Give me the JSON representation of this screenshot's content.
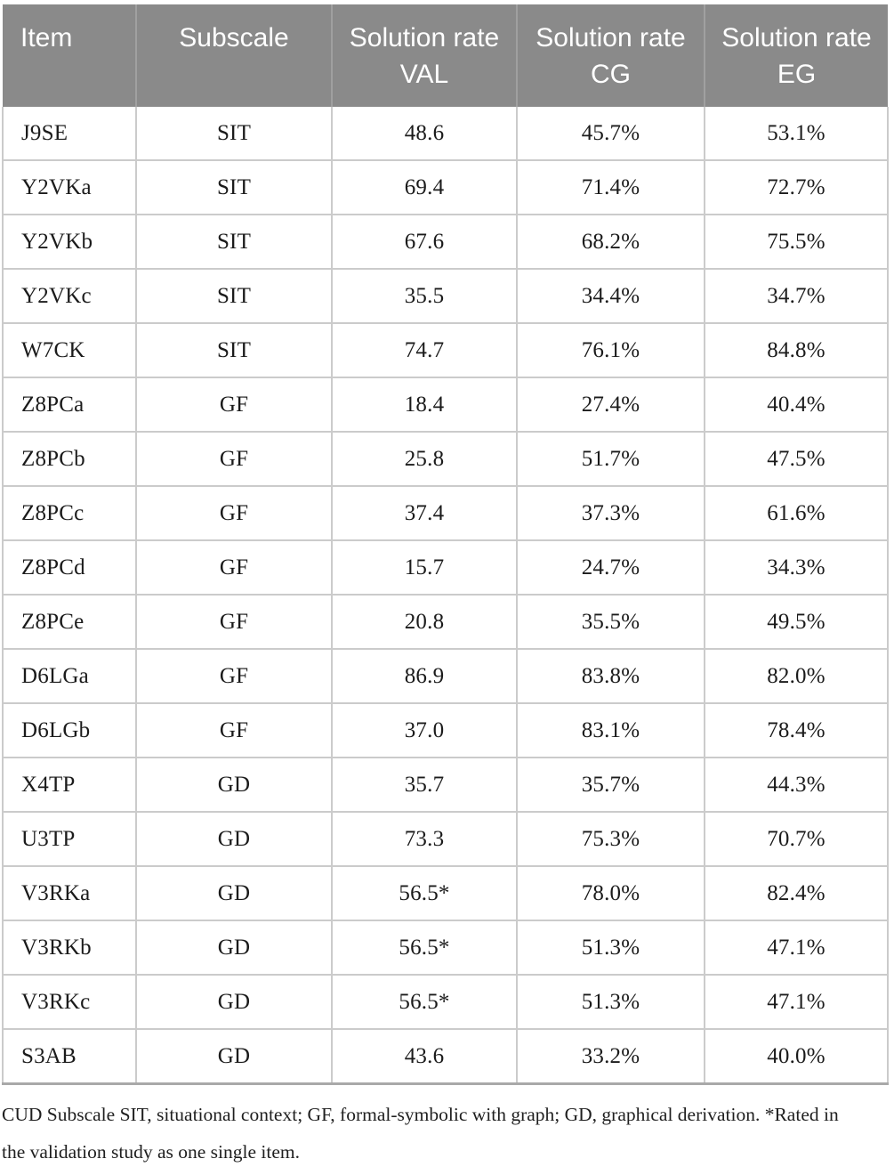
{
  "table": {
    "columns": [
      "Item",
      "Subscale",
      "Solution rate VAL",
      "Solution rate CG",
      "Solution rate EG"
    ],
    "rows": [
      [
        "J9SE",
        "SIT",
        "48.6",
        "45.7%",
        "53.1%"
      ],
      [
        "Y2VKa",
        "SIT",
        "69.4",
        "71.4%",
        "72.7%"
      ],
      [
        "Y2VKb",
        "SIT",
        "67.6",
        "68.2%",
        "75.5%"
      ],
      [
        "Y2VKc",
        "SIT",
        "35.5",
        "34.4%",
        "34.7%"
      ],
      [
        "W7CK",
        "SIT",
        "74.7",
        "76.1%",
        "84.8%"
      ],
      [
        "Z8PCa",
        "GF",
        "18.4",
        "27.4%",
        "40.4%"
      ],
      [
        "Z8PCb",
        "GF",
        "25.8",
        "51.7%",
        "47.5%"
      ],
      [
        "Z8PCc",
        "GF",
        "37.4",
        "37.3%",
        "61.6%"
      ],
      [
        "Z8PCd",
        "GF",
        "15.7",
        "24.7%",
        "34.3%"
      ],
      [
        "Z8PCe",
        "GF",
        "20.8",
        "35.5%",
        "49.5%"
      ],
      [
        "D6LGa",
        "GF",
        "86.9",
        "83.8%",
        "82.0%"
      ],
      [
        "D6LGb",
        "GF",
        "37.0",
        "83.1%",
        "78.4%"
      ],
      [
        "X4TP",
        "GD",
        "35.7",
        "35.7%",
        "44.3%"
      ],
      [
        "U3TP",
        "GD",
        "73.3",
        "75.3%",
        "70.7%"
      ],
      [
        "V3RKa",
        "GD",
        "56.5*",
        "78.0%",
        "82.4%"
      ],
      [
        "V3RKb",
        "GD",
        "56.5*",
        "51.3%",
        "47.1%"
      ],
      [
        "V3RKc",
        "GD",
        "56.5*",
        "51.3%",
        "47.1%"
      ],
      [
        "S3AB",
        "GD",
        "43.6",
        "33.2%",
        "40.0%"
      ]
    ]
  },
  "footnote": "CUD Subscale SIT, situational context; GF, formal-symbolic with graph; GD, graphical derivation. *Rated in the validation study as one single item.",
  "colors": {
    "header_bg": "#8a8a8a",
    "header_text": "#ffffff",
    "cell_border": "#cbcbcb",
    "table_bottom_border": "#a9a9a9",
    "body_text": "#1b1b1b"
  }
}
